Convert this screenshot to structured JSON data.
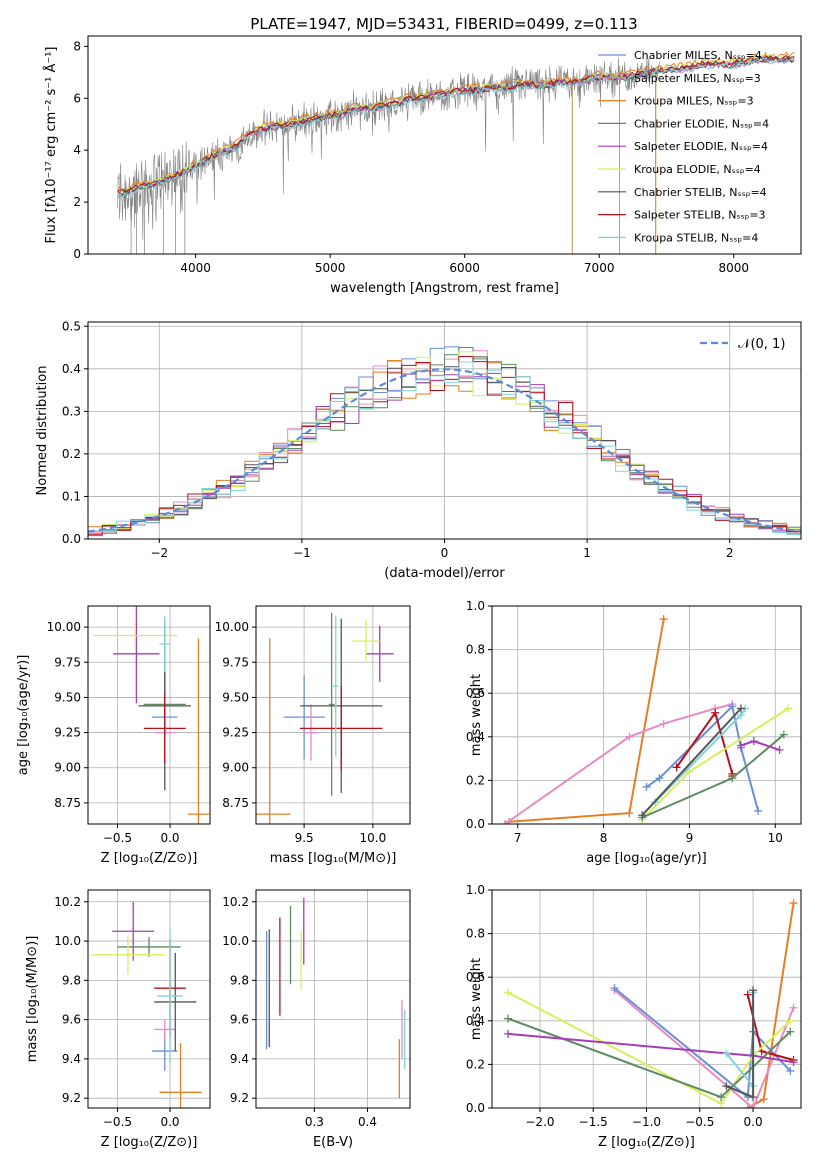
{
  "chart_data": [
    {
      "id": "spectrum",
      "type": "line",
      "title": "PLATE=1947, MJD=53431, FIBERID=0499, z=0.113",
      "xlabel": "wavelength [Angstrom, rest frame]",
      "ylabel": "Flux [fλ10⁻¹⁷ erg cm⁻² s⁻¹ Å⁻¹]",
      "xlim": [
        3200,
        8500
      ],
      "ylim": [
        0,
        8.4
      ],
      "xticks": [
        4000,
        5000,
        6000,
        7000,
        8000
      ],
      "yticks": [
        0,
        2,
        4,
        6,
        8
      ],
      "grid": false,
      "legend_position": "lower-right",
      "data_curve": {
        "color": "#808080",
        "x": [
          3420,
          3500,
          3600,
          3700,
          3800,
          3900,
          4000,
          4100,
          4200,
          4300,
          4400,
          4500,
          4600,
          4700,
          4800,
          4900,
          5000,
          5100,
          5200,
          5300,
          5400,
          5500,
          5600,
          5700,
          5800,
          5900,
          6000,
          6100,
          6200,
          6300,
          6400,
          6500,
          6600,
          6700,
          6800,
          6900,
          7000,
          7100,
          7200,
          7300,
          7400,
          7500,
          7600,
          7700,
          7800,
          7900,
          8000,
          8100,
          8200,
          8300,
          8400
        ],
        "y": [
          2.3,
          2.4,
          2.6,
          2.7,
          2.9,
          3.1,
          3.4,
          3.7,
          3.9,
          4.1,
          4.6,
          4.8,
          4.9,
          5.0,
          5.1,
          5.2,
          5.3,
          5.4,
          5.6,
          5.6,
          5.7,
          5.8,
          6.0,
          6.0,
          6.1,
          6.2,
          6.3,
          6.3,
          6.4,
          6.4,
          6.5,
          6.5,
          6.5,
          6.6,
          6.6,
          6.7,
          6.8,
          6.8,
          6.8,
          6.9,
          7.0,
          7.1,
          7.1,
          7.2,
          7.3,
          7.3,
          7.3,
          7.4,
          7.5,
          7.5,
          7.5
        ]
      },
      "series": [
        {
          "name": "Chabrier MILES, Nₛₛₚ=4",
          "color": "#6b8fd6",
          "offset": 0.05
        },
        {
          "name": "Salpeter MILES, Nₛₛₚ=3",
          "color": "#e88bc4",
          "offset": -0.04
        },
        {
          "name": "Kroupa MILES, Nₛₛₚ=3",
          "color": "#e67e22",
          "offset": 0.15
        },
        {
          "name": "Chabrier ELODIE, Nₛₛₚ=4",
          "color": "#5f8a64",
          "offset": -0.02
        },
        {
          "name": "Salpeter ELODIE, Nₛₛₚ=4",
          "color": "#a33fb5",
          "offset": 0.02
        },
        {
          "name": "Kroupa ELODIE, Nₛₛₚ=4",
          "color": "#d8ef5a",
          "offset": 0.08
        },
        {
          "name": "Chabrier STELIB, Nₛₛₚ=4",
          "color": "#555555",
          "offset": 0.0
        },
        {
          "name": "Salpeter STELIB, Nₛₛₚ=3",
          "color": "#b5121b",
          "offset": 0.03
        },
        {
          "name": "Kroupa STELIB, Nₛₛₚ=4",
          "color": "#7fd3dc",
          "offset": -0.06
        }
      ]
    },
    {
      "id": "residuals",
      "type": "histogram",
      "xlabel": "(data-model)/error",
      "ylabel": "Normed distribution",
      "xlim": [
        -2.5,
        2.5
      ],
      "ylim": [
        0,
        0.51
      ],
      "xticks": [
        -2,
        -1,
        0,
        1,
        2
      ],
      "yticks": [
        0.0,
        0.1,
        0.2,
        0.3,
        0.4,
        0.5
      ],
      "grid": true,
      "legend": "𝒩(0, 1)",
      "legend_position": "top-right",
      "gaussian_color": "#5b8bd6",
      "bin_width": 0.1
    },
    {
      "id": "age-vs-Z",
      "type": "errorbar",
      "xlabel": "Z [log₁₀(Z/Z⊙)]",
      "ylabel": "age  [log₁₀(age/yr)]",
      "xlim": [
        -0.78,
        0.38
      ],
      "ylim": [
        8.6,
        10.15
      ],
      "xticks": [
        -0.5,
        0.0
      ],
      "yticks": [
        8.75,
        9.0,
        9.25,
        9.5,
        9.75,
        10.0
      ],
      "grid": true,
      "points": [
        {
          "x": -0.05,
          "y": 9.36,
          "xerr": 0.12,
          "yerr": 0.3,
          "color": "#6b8fd6"
        },
        {
          "x": -0.05,
          "y": 9.25,
          "xerr": 0.1,
          "yerr": 0.2,
          "color": "#e88bc4"
        },
        {
          "x": 0.27,
          "y": 8.67,
          "xerr": 0.1,
          "yerr": 1.25,
          "color": "#e67e22"
        },
        {
          "x": -0.05,
          "y": 9.45,
          "xerr": 0.2,
          "yerr": 0.35,
          "color": "#5f8a64"
        },
        {
          "x": -0.32,
          "y": 9.81,
          "xerr": 0.22,
          "yerr": 0.35,
          "color": "#a33fb5"
        },
        {
          "x": -0.33,
          "y": 9.94,
          "xerr": 0.4,
          "yerr": 0.1,
          "color": "#d8ef5a"
        },
        {
          "x": -0.05,
          "y": 9.44,
          "xerr": 0.25,
          "yerr": 0.6,
          "color": "#555555"
        },
        {
          "x": -0.05,
          "y": 9.28,
          "xerr": 0.2,
          "yerr": 0.25,
          "color": "#b5121b"
        },
        {
          "x": -0.05,
          "y": 9.88,
          "xerr": 0.05,
          "yerr": 0.2,
          "color": "#7fd3dc"
        }
      ]
    },
    {
      "id": "age-vs-mass",
      "type": "errorbar",
      "xlabel": "mass [log₁₀(M/M⊙)]",
      "ylabel": "",
      "xlim": [
        9.15,
        10.27
      ],
      "ylim": [
        8.6,
        10.15
      ],
      "xticks": [
        9.5,
        10.0
      ],
      "yticks": [
        8.75,
        9.0,
        9.25,
        9.5,
        9.75,
        10.0
      ],
      "grid": true,
      "points": [
        {
          "x": 9.5,
          "y": 9.36,
          "xerr": 0.15,
          "yerr": 0.3,
          "color": "#6b8fd6"
        },
        {
          "x": 9.55,
          "y": 9.25,
          "xerr": 0.05,
          "yerr": 0.2,
          "color": "#e88bc4"
        },
        {
          "x": 9.25,
          "y": 8.67,
          "xerr": 0.15,
          "yerr": 1.25,
          "color": "#e67e22"
        },
        {
          "x": 9.7,
          "y": 9.45,
          "xerr": 0.02,
          "yerr": 0.65,
          "color": "#5f8a64"
        },
        {
          "x": 10.05,
          "y": 9.81,
          "xerr": 0.1,
          "yerr": 0.2,
          "color": "#a33fb5"
        },
        {
          "x": 9.95,
          "y": 9.9,
          "xerr": 0.1,
          "yerr": 0.15,
          "color": "#d8ef5a"
        },
        {
          "x": 9.77,
          "y": 9.44,
          "xerr": 0.3,
          "yerr": 0.62,
          "color": "#555555"
        },
        {
          "x": 9.77,
          "y": 9.28,
          "xerr": 0.3,
          "yerr": 0.3,
          "color": "#b5121b"
        },
        {
          "x": 9.73,
          "y": 9.58,
          "xerr": 0.02,
          "yerr": 0.5,
          "color": "#7fd3dc"
        }
      ]
    },
    {
      "id": "weight-vs-age",
      "type": "line",
      "xlabel": "age  [log₁₀(age/yr)]",
      "ylabel": "mass weight",
      "xlim": [
        6.7,
        10.3
      ],
      "ylim": [
        0,
        1
      ],
      "xticks": [
        7,
        8,
        9,
        10
      ],
      "yticks": [
        0.0,
        0.2,
        0.4,
        0.6,
        0.8,
        1.0
      ],
      "grid": true,
      "series": [
        {
          "color": "#e67e22",
          "x": [
            6.9,
            8.3,
            8.7
          ],
          "y": [
            0.01,
            0.05,
            0.94
          ]
        },
        {
          "color": "#e88bc4",
          "x": [
            6.85,
            8.3,
            8.7,
            9.3,
            9.5
          ],
          "y": [
            0.0,
            0.4,
            0.46,
            0.53,
            0.55
          ]
        },
        {
          "color": "#6b8fd6",
          "x": [
            8.5,
            8.65,
            9.5,
            9.6,
            9.8
          ],
          "y": [
            0.17,
            0.21,
            0.54,
            0.35,
            0.06
          ]
        },
        {
          "color": "#b5121b",
          "x": [
            8.85,
            9.3,
            9.5,
            9.5
          ],
          "y": [
            0.26,
            0.51,
            0.23,
            0.22
          ]
        },
        {
          "color": "#d8ef5a",
          "x": [
            8.45,
            9.0,
            10.15
          ],
          "y": [
            0.02,
            0.24,
            0.53
          ]
        },
        {
          "color": "#5f8a64",
          "x": [
            8.45,
            9.5,
            10.1
          ],
          "y": [
            0.03,
            0.21,
            0.41
          ]
        },
        {
          "color": "#a33fb5",
          "x": [
            9.6,
            9.75,
            10.05
          ],
          "y": [
            0.36,
            0.38,
            0.34
          ]
        },
        {
          "color": "#7fd3dc",
          "x": [
            8.6,
            9.6,
            9.65
          ],
          "y": [
            0.1,
            0.5,
            0.53
          ]
        },
        {
          "color": "#555555",
          "x": [
            8.45,
            9.6
          ],
          "y": [
            0.04,
            0.53
          ]
        }
      ]
    },
    {
      "id": "mass-vs-Z",
      "type": "errorbar",
      "xlabel": "Z [log₁₀(Z/Z⊙)]",
      "ylabel": "mass [log₁₀(M/M⊙)]",
      "xlim": [
        -0.78,
        0.38
      ],
      "ylim": [
        9.15,
        10.26
      ],
      "xticks": [
        -0.5,
        0.0
      ],
      "yticks": [
        9.2,
        9.4,
        9.6,
        9.8,
        10.0,
        10.2
      ],
      "grid": true,
      "points": [
        {
          "x": -0.05,
          "y": 9.44,
          "xerr": 0.12,
          "yerr": 0.1,
          "color": "#6b8fd6"
        },
        {
          "x": -0.05,
          "y": 9.55,
          "xerr": 0.1,
          "yerr": 0.05,
          "color": "#e88bc4"
        },
        {
          "x": 0.1,
          "y": 9.23,
          "xerr": 0.2,
          "yerr": 0.25,
          "color": "#e67e22"
        },
        {
          "x": -0.2,
          "y": 9.97,
          "xerr": 0.3,
          "yerr": 0.05,
          "color": "#5f8a64"
        },
        {
          "x": -0.35,
          "y": 10.05,
          "xerr": 0.2,
          "yerr": 0.15,
          "color": "#a33fb5"
        },
        {
          "x": -0.4,
          "y": 9.93,
          "xerr": 0.35,
          "yerr": 0.1,
          "color": "#d8ef5a"
        },
        {
          "x": 0.05,
          "y": 9.69,
          "xerr": 0.2,
          "yerr": 0.25,
          "color": "#555555"
        },
        {
          "x": 0.0,
          "y": 9.76,
          "xerr": 0.15,
          "yerr": 0.25,
          "color": "#b5121b"
        },
        {
          "x": 0.0,
          "y": 9.72,
          "xerr": 0.12,
          "yerr": 0.35,
          "color": "#7fd3dc"
        }
      ]
    },
    {
      "id": "mass-vs-EBV",
      "type": "errorbar",
      "xlabel": "E(B-V)",
      "ylabel": "",
      "xlim": [
        0.19,
        0.48
      ],
      "ylim": [
        9.15,
        10.26
      ],
      "xticks": [
        0.3,
        0.4
      ],
      "yticks": [
        9.2,
        9.4,
        9.6,
        9.8,
        10.0,
        10.2
      ],
      "grid": true,
      "points": [
        {
          "x": 0.21,
          "y": 9.75,
          "xerr": 0.0,
          "yerr": 0.3,
          "color": "#6b8fd6"
        },
        {
          "x": 0.465,
          "y": 9.55,
          "xerr": 0.0,
          "yerr": 0.15,
          "color": "#e88bc4"
        },
        {
          "x": 0.46,
          "y": 9.35,
          "xerr": 0.0,
          "yerr": 0.15,
          "color": "#e67e22"
        },
        {
          "x": 0.255,
          "y": 9.98,
          "xerr": 0.0,
          "yerr": 0.2,
          "color": "#5f8a64"
        },
        {
          "x": 0.28,
          "y": 10.05,
          "xerr": 0.0,
          "yerr": 0.17,
          "color": "#a33fb5"
        },
        {
          "x": 0.275,
          "y": 9.9,
          "xerr": 0.0,
          "yerr": 0.15,
          "color": "#d8ef5a"
        },
        {
          "x": 0.215,
          "y": 9.76,
          "xerr": 0.0,
          "yerr": 0.3,
          "color": "#555555"
        },
        {
          "x": 0.235,
          "y": 9.87,
          "xerr": 0.0,
          "yerr": 0.25,
          "color": "#b5121b"
        },
        {
          "x": 0.47,
          "y": 9.5,
          "xerr": 0.0,
          "yerr": 0.15,
          "color": "#7fd3dc"
        }
      ]
    },
    {
      "id": "weight-vs-Z",
      "type": "line",
      "xlabel": "Z [log₁₀(Z/Z⊙)]",
      "ylabel": "mass weight",
      "xlim": [
        -2.45,
        0.45
      ],
      "ylim": [
        0,
        1
      ],
      "xticks": [
        -2.0,
        -1.5,
        -1.0,
        -0.5,
        0.0
      ],
      "yticks": [
        0.0,
        0.2,
        0.4,
        0.6,
        0.8,
        1.0
      ],
      "grid": true,
      "series": [
        {
          "color": "#e67e22",
          "x": [
            -0.05,
            0.1,
            0.38
          ],
          "y": [
            0.0,
            0.04,
            0.94
          ]
        },
        {
          "color": "#e88bc4",
          "x": [
            -1.3,
            0.0,
            0.38
          ],
          "y": [
            0.54,
            0.0,
            0.46
          ]
        },
        {
          "color": "#6b8fd6",
          "x": [
            -1.3,
            -0.05,
            0.0,
            0.35
          ],
          "y": [
            0.55,
            0.05,
            0.35,
            0.17
          ]
        },
        {
          "color": "#b5121b",
          "x": [
            -0.05,
            0.08,
            0.38
          ],
          "y": [
            0.52,
            0.26,
            0.22
          ]
        },
        {
          "color": "#d8ef5a",
          "x": [
            -2.3,
            -0.3,
            0.0,
            0.35
          ],
          "y": [
            0.53,
            0.02,
            0.24,
            0.4
          ]
        },
        {
          "color": "#5f8a64",
          "x": [
            -2.3,
            -0.3,
            0.35
          ],
          "y": [
            0.41,
            0.05,
            0.35
          ]
        },
        {
          "color": "#a33fb5",
          "x": [
            -2.3,
            0.0,
            0.38
          ],
          "y": [
            0.34,
            0.24,
            0.21
          ]
        },
        {
          "color": "#7fd3dc",
          "x": [
            -0.25,
            0.0,
            0.0
          ],
          "y": [
            0.25,
            0.1,
            0.53
          ]
        },
        {
          "color": "#555555",
          "x": [
            -0.25,
            0.0,
            0.0
          ],
          "y": [
            0.1,
            0.05,
            0.54
          ]
        }
      ]
    }
  ]
}
